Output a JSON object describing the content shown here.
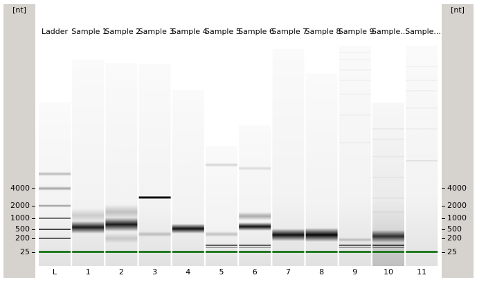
{
  "axis": {
    "unit": "[nt]",
    "ticks": [
      {
        "label": "4000",
        "nt": 4000
      },
      {
        "label": "2000",
        "nt": 2000
      },
      {
        "label": "1000",
        "nt": 1000
      },
      {
        "label": "500",
        "nt": 500
      },
      {
        "label": "200",
        "nt": 200
      },
      {
        "label": "25",
        "nt": 25
      }
    ]
  },
  "lanes": [
    {
      "header": "Ladder",
      "number": "L"
    },
    {
      "header": "Sample 1",
      "number": "1"
    },
    {
      "header": "Sample 2",
      "number": "2"
    },
    {
      "header": "Sample 3",
      "number": "3"
    },
    {
      "header": "Sample 4",
      "number": "4"
    },
    {
      "header": "Sample 5",
      "number": "5"
    },
    {
      "header": "Sample 6",
      "number": "6"
    },
    {
      "header": "Sample 7",
      "number": "7"
    },
    {
      "header": "Sample 8",
      "number": "8"
    },
    {
      "header": "Sample 9",
      "number": "9"
    },
    {
      "header": "Sample...",
      "number": "10"
    },
    {
      "header": "Sample...",
      "number": "11"
    }
  ],
  "colors": {
    "axis_background": "#d6d3ce",
    "marker_band": "#217a21",
    "band": "#000000",
    "text": "#000000"
  }
}
